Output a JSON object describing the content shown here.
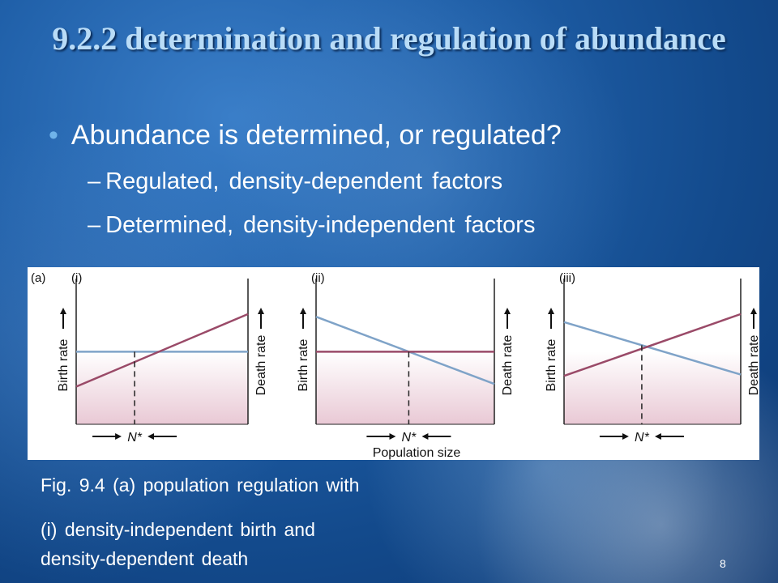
{
  "slide": {
    "title": "9.2.2 determination and regulation of abundance",
    "bullet": "Abundance is determined, or regulated?",
    "sub_items": [
      "Regulated, density-dependent factors",
      "Determined, density-independent factors"
    ],
    "caption_lines": [
      "Fig. 9.4 (a) population regulation with",
      "(i) density-independent birth and",
      "density-dependent death"
    ],
    "page_number": "8"
  },
  "figure": {
    "part_label": "(a)",
    "x_axis_label": "Population size",
    "panels": [
      {
        "label": "(i)",
        "left_axis_label": "Birth rate",
        "right_axis_label": "Death rate",
        "equilibrium_label": "N*",
        "birth_line": {
          "start": 0.54,
          "end": 0.54
        },
        "death_line": {
          "start": 0.28,
          "end": 0.82
        },
        "equilibrium_x": 0.34
      },
      {
        "label": "(ii)",
        "left_axis_label": "Birth rate",
        "right_axis_label": "Death rate",
        "equilibrium_label": "N*",
        "birth_line": {
          "start": 0.8,
          "end": 0.3
        },
        "death_line": {
          "start": 0.54,
          "end": 0.54
        },
        "equilibrium_x": 0.52
      },
      {
        "label": "(iii)",
        "left_axis_label": "Birth rate",
        "right_axis_label": "Death rate",
        "equilibrium_label": "N*",
        "birth_line": {
          "start": 0.76,
          "end": 0.37
        },
        "death_line": {
          "start": 0.36,
          "end": 0.82
        },
        "equilibrium_x": 0.44
      }
    ],
    "colors": {
      "birth": "#7fa3c8",
      "death": "#9a4a68",
      "shade_top": "#ffffff",
      "shade_bottom": "#e9c9d5"
    }
  }
}
